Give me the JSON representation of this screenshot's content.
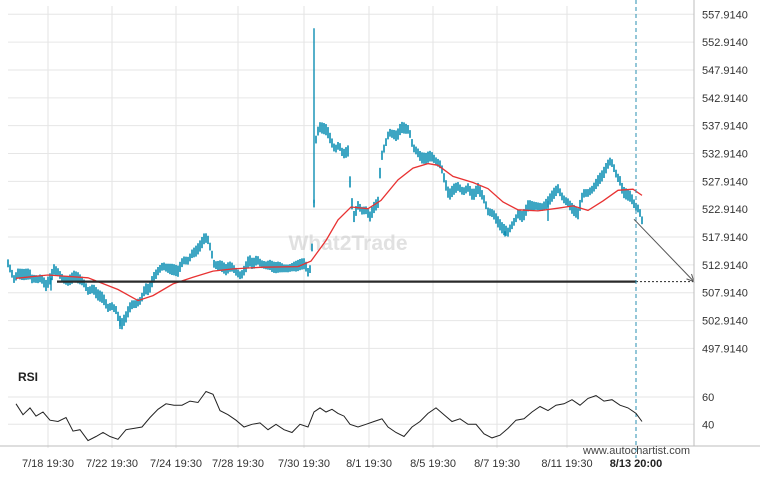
{
  "chart_data": {
    "type": "line",
    "title": "",
    "watermark": "What2Trade",
    "attribution": "www.autochartist.com",
    "price_axis": {
      "ticks": [
        "557.9140",
        "552.9140",
        "547.9140",
        "542.9140",
        "537.9140",
        "532.9140",
        "527.9140",
        "522.9140",
        "517.9140",
        "512.9140",
        "507.9140",
        "502.9140",
        "497.9140"
      ],
      "range": [
        494.4,
        559.4
      ]
    },
    "x_axis": {
      "ticks": [
        "7/18 19:30",
        "7/22 19:30",
        "7/24 19:30",
        "7/28 19:30",
        "7/30 19:30",
        "8/1 19:30",
        "8/5 19:30",
        "8/7 19:30",
        "8/11 19:30"
      ],
      "last_label": "8/13 20:00",
      "grid": true
    },
    "support_level": 509.91,
    "projection": {
      "from": 521.1,
      "to": 509.91
    },
    "price_series": {
      "name": "",
      "color": "#0e8fb4",
      "anchors": [
        [
          0,
          513.0
        ],
        [
          6,
          510.5
        ],
        [
          10,
          511.6
        ],
        [
          16,
          511.2
        ],
        [
          22,
          511.0
        ],
        [
          24,
          510.2
        ],
        [
          30,
          510.4
        ],
        [
          33,
          510.8
        ],
        [
          38,
          509.4
        ],
        [
          43,
          510.6
        ],
        [
          46,
          511.9
        ],
        [
          50,
          511.4
        ],
        [
          55,
          510.4
        ],
        [
          60,
          510.2
        ],
        [
          66,
          510.9
        ],
        [
          70,
          510.4
        ],
        [
          75,
          509.7
        ],
        [
          80,
          508.3
        ],
        [
          85,
          508.9
        ],
        [
          90,
          507.6
        ],
        [
          95,
          506.8
        ],
        [
          100,
          505.0
        ],
        [
          104,
          505.5
        ],
        [
          108,
          505.0
        ],
        [
          111,
          503.3
        ],
        [
          114,
          502.5
        ],
        [
          118,
          503.5
        ],
        [
          123,
          505.5
        ],
        [
          128,
          505.8
        ],
        [
          133,
          506.8
        ],
        [
          137,
          508.9
        ],
        [
          141,
          508.5
        ],
        [
          145,
          510.2
        ],
        [
          150,
          511.6
        ],
        [
          155,
          512.8
        ],
        [
          160,
          512.5
        ],
        [
          165,
          512.2
        ],
        [
          170,
          511.6
        ],
        [
          175,
          513.5
        ],
        [
          180,
          513.7
        ],
        [
          184,
          515.1
        ],
        [
          189,
          515.7
        ],
        [
          193,
          516.5
        ],
        [
          197,
          517.7
        ],
        [
          200,
          517.2
        ],
        [
          203,
          515.5
        ],
        [
          206,
          513.2
        ],
        [
          209,
          513.0
        ],
        [
          213,
          513.0
        ],
        [
          218,
          512.0
        ],
        [
          223,
          512.5
        ],
        [
          228,
          511.6
        ],
        [
          233,
          511.1
        ],
        [
          237,
          512.4
        ],
        [
          241,
          513.9
        ],
        [
          245,
          512.8
        ],
        [
          249,
          513.7
        ],
        [
          253,
          513.0
        ],
        [
          257,
          513.0
        ],
        [
          262,
          513.1
        ],
        [
          267,
          512.4
        ],
        [
          272,
          512.3
        ],
        [
          276,
          512.1
        ],
        [
          280,
          512.3
        ],
        [
          285,
          512.8
        ],
        [
          289,
          512.9
        ],
        [
          293,
          513.0
        ],
        [
          297,
          512.9
        ],
        [
          300,
          511.4
        ],
        [
          302,
          512.0
        ],
        [
          304,
          516.0
        ],
        [
          306,
          524.0
        ],
        [
          308,
          535.6
        ],
        [
          311,
          537.9
        ],
        [
          315,
          537.6
        ],
        [
          319,
          537.0
        ],
        [
          323,
          535.0
        ],
        [
          327,
          533.4
        ],
        [
          331,
          534.6
        ],
        [
          335,
          533.0
        ],
        [
          340,
          533.5
        ],
        [
          343,
          525.0
        ],
        [
          346,
          521.4
        ],
        [
          350,
          523.4
        ],
        [
          354,
          522.6
        ],
        [
          358,
          522.9
        ],
        [
          362,
          521.8
        ],
        [
          366,
          523.3
        ],
        [
          370,
          524.0
        ],
        [
          373,
          531.8
        ],
        [
          377,
          534.2
        ],
        [
          381,
          536.8
        ],
        [
          385,
          536.6
        ],
        [
          389,
          536.2
        ],
        [
          393,
          537.6
        ],
        [
          397,
          537.2
        ],
        [
          401,
          537.0
        ],
        [
          405,
          534.0
        ],
        [
          409,
          533.5
        ],
        [
          413,
          532.4
        ],
        [
          418,
          532.0
        ],
        [
          423,
          532.3
        ],
        [
          428,
          531.4
        ],
        [
          433,
          531.0
        ],
        [
          437,
          528.0
        ],
        [
          441,
          525.5
        ],
        [
          445,
          526.2
        ],
        [
          450,
          526.8
        ],
        [
          455,
          526.0
        ],
        [
          460,
          527.0
        ],
        [
          465,
          525.5
        ],
        [
          470,
          526.5
        ],
        [
          475,
          525.0
        ],
        [
          480,
          522.5
        ],
        [
          485,
          522.4
        ],
        [
          490,
          520.8
        ],
        [
          495,
          519.2
        ],
        [
          500,
          518.6
        ],
        [
          505,
          520.3
        ],
        [
          510,
          522.2
        ],
        [
          515,
          521.7
        ],
        [
          520,
          523.4
        ],
        [
          525,
          523.3
        ],
        [
          530,
          523.4
        ],
        [
          535,
          523.5
        ],
        [
          540,
          524.4
        ],
        [
          545,
          525.4
        ],
        [
          550,
          526.4
        ],
        [
          555,
          524.8
        ],
        [
          560,
          524.3
        ],
        [
          565,
          523.0
        ],
        [
          570,
          522.0
        ],
        [
          575,
          525.5
        ],
        [
          580,
          525.8
        ],
        [
          585,
          526.8
        ],
        [
          590,
          528.2
        ],
        [
          595,
          529.0
        ],
        [
          600,
          530.8
        ],
        [
          603,
          531.5
        ],
        [
          606,
          530.3
        ],
        [
          609,
          529.0
        ],
        [
          612,
          528.2
        ],
        [
          615,
          526.2
        ],
        [
          619,
          525.5
        ],
        [
          623,
          524.9
        ],
        [
          627,
          523.3
        ],
        [
          631,
          522.9
        ],
        [
          634,
          521.1
        ]
      ],
      "spikes": [
        [
          43,
          508.3
        ],
        [
          112,
          501.4
        ],
        [
          306,
          555.4
        ],
        [
          497,
          518.0
        ],
        [
          540,
          520.8
        ]
      ]
    },
    "moving_average": {
      "name": "",
      "color": "#e83232",
      "anchors": [
        [
          8,
          510.5
        ],
        [
          40,
          511.1
        ],
        [
          80,
          510.6
        ],
        [
          110,
          508.5
        ],
        [
          130,
          506.5
        ],
        [
          145,
          507.4
        ],
        [
          165,
          509.5
        ],
        [
          185,
          510.7
        ],
        [
          205,
          511.8
        ],
        [
          225,
          512.2
        ],
        [
          255,
          512.5
        ],
        [
          290,
          512.6
        ],
        [
          303,
          513.6
        ],
        [
          318,
          517.3
        ],
        [
          330,
          521.0
        ],
        [
          343,
          523.3
        ],
        [
          360,
          523.0
        ],
        [
          373,
          524.5
        ],
        [
          390,
          528.2
        ],
        [
          405,
          530.3
        ],
        [
          420,
          531.1
        ],
        [
          430,
          530.8
        ],
        [
          445,
          528.8
        ],
        [
          465,
          527.7
        ],
        [
          480,
          526.6
        ],
        [
          495,
          524.2
        ],
        [
          510,
          522.8
        ],
        [
          530,
          522.6
        ],
        [
          550,
          523.1
        ],
        [
          565,
          523.5
        ],
        [
          580,
          522.7
        ],
        [
          595,
          524.4
        ],
        [
          610,
          526.3
        ],
        [
          625,
          526.5
        ],
        [
          634,
          525.4
        ]
      ]
    },
    "rsi": {
      "label": "RSI",
      "ticks": [
        "60",
        "40"
      ],
      "range": [
        27,
        71
      ],
      "color": "#222222",
      "anchors": [
        [
          8,
          55
        ],
        [
          15,
          47
        ],
        [
          22,
          52
        ],
        [
          28,
          46
        ],
        [
          35,
          49
        ],
        [
          42,
          43
        ],
        [
          50,
          42
        ],
        [
          58,
          45
        ],
        [
          65,
          35
        ],
        [
          72,
          36
        ],
        [
          80,
          28
        ],
        [
          88,
          31
        ],
        [
          95,
          34
        ],
        [
          102,
          31
        ],
        [
          110,
          29
        ],
        [
          118,
          36
        ],
        [
          126,
          37
        ],
        [
          134,
          38
        ],
        [
          142,
          45
        ],
        [
          150,
          51
        ],
        [
          158,
          55
        ],
        [
          166,
          54
        ],
        [
          174,
          54
        ],
        [
          182,
          57
        ],
        [
          190,
          56
        ],
        [
          198,
          64
        ],
        [
          205,
          62
        ],
        [
          212,
          50
        ],
        [
          220,
          47
        ],
        [
          228,
          43
        ],
        [
          236,
          38
        ],
        [
          244,
          40
        ],
        [
          252,
          41
        ],
        [
          260,
          36
        ],
        [
          268,
          40
        ],
        [
          276,
          36
        ],
        [
          284,
          34
        ],
        [
          292,
          40
        ],
        [
          300,
          38
        ],
        [
          306,
          49
        ],
        [
          312,
          52
        ],
        [
          318,
          49
        ],
        [
          324,
          51
        ],
        [
          330,
          48
        ],
        [
          336,
          46
        ],
        [
          342,
          40
        ],
        [
          350,
          38
        ],
        [
          358,
          40
        ],
        [
          366,
          42
        ],
        [
          374,
          44
        ],
        [
          380,
          38
        ],
        [
          388,
          34
        ],
        [
          396,
          31
        ],
        [
          404,
          38
        ],
        [
          412,
          42
        ],
        [
          420,
          48
        ],
        [
          428,
          52
        ],
        [
          436,
          47
        ],
        [
          444,
          42
        ],
        [
          452,
          44
        ],
        [
          460,
          40
        ],
        [
          468,
          40
        ],
        [
          476,
          33
        ],
        [
          484,
          30
        ],
        [
          492,
          32
        ],
        [
          500,
          37
        ],
        [
          508,
          43
        ],
        [
          516,
          44
        ],
        [
          524,
          49
        ],
        [
          532,
          53
        ],
        [
          540,
          50
        ],
        [
          548,
          54
        ],
        [
          556,
          55
        ],
        [
          564,
          58
        ],
        [
          572,
          54
        ],
        [
          580,
          59
        ],
        [
          588,
          61
        ],
        [
          596,
          57
        ],
        [
          604,
          58
        ],
        [
          612,
          54
        ],
        [
          620,
          52
        ],
        [
          628,
          48
        ],
        [
          634,
          42
        ]
      ]
    }
  }
}
